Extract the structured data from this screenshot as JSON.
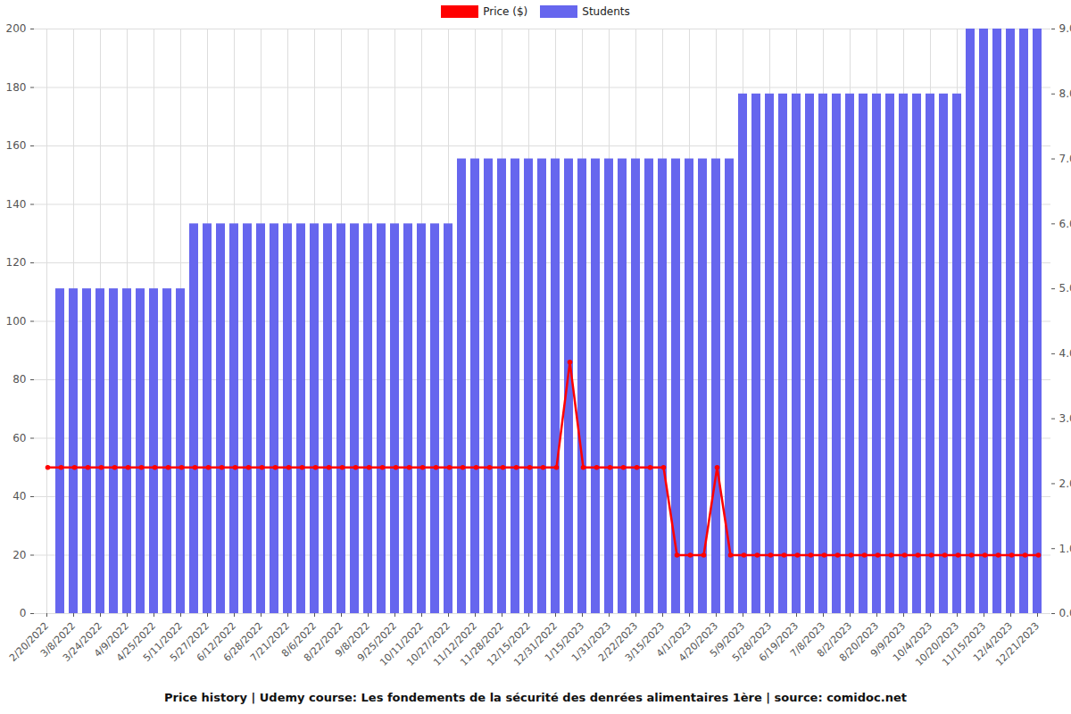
{
  "chart_data": {
    "type": "bar",
    "title": "Price history | Udemy course: Les fondements de la sécurité des denrées alimentaires 1ère | source: comidoc.net",
    "categories": [
      "2/20/2022",
      null,
      "3/8/2022",
      null,
      "3/24/2022",
      null,
      "4/9/2022",
      null,
      "4/25/2022",
      null,
      "5/11/2022",
      null,
      "5/27/2022",
      null,
      "6/12/2022",
      null,
      "6/28/2022",
      null,
      "7/21/2022",
      null,
      "8/6/2022",
      null,
      "8/22/2022",
      null,
      "9/8/2022",
      null,
      "9/25/2022",
      null,
      "10/11/2022",
      null,
      "10/27/2022",
      null,
      "11/12/2022",
      null,
      "11/28/2022",
      null,
      "12/15/2022",
      null,
      "12/31/2022",
      null,
      "1/15/2023",
      null,
      "1/31/2023",
      null,
      "2/22/2023",
      null,
      "3/15/2023",
      null,
      "4/1/2023",
      null,
      "4/20/2023",
      null,
      "5/9/2023",
      null,
      "5/28/2023",
      null,
      "6/19/2023",
      null,
      "7/8/2023",
      null,
      "8/2/2023",
      null,
      "8/20/2023",
      null,
      "9/9/2023",
      null,
      "10/4/2023",
      null,
      "10/20/2023",
      null,
      "11/15/2023",
      null,
      "12/4/2023",
      null,
      "12/21/2023"
    ],
    "series": [
      {
        "name": "Price ($)",
        "type": "line",
        "color": "#ff0000",
        "marker": "o",
        "values": [
          50,
          50,
          50,
          50,
          50,
          50,
          50,
          50,
          50,
          50,
          50,
          50,
          50,
          50,
          50,
          50,
          50,
          50,
          50,
          50,
          50,
          50,
          50,
          50,
          50,
          50,
          50,
          50,
          50,
          50,
          50,
          50,
          50,
          50,
          50,
          50,
          50,
          50,
          50,
          86,
          50,
          50,
          50,
          50,
          50,
          50,
          50,
          20,
          20,
          20,
          50,
          20,
          20,
          20,
          20,
          20,
          20,
          20,
          20,
          20,
          20,
          20,
          20,
          20,
          20,
          20,
          20,
          20,
          20,
          20,
          20,
          20,
          20,
          20,
          20
        ]
      },
      {
        "name": "Students",
        "type": "bar",
        "color": "#6666ee",
        "axis": "y2",
        "values": [
          0,
          5,
          5,
          5,
          5,
          5,
          5,
          5,
          5,
          5,
          5,
          6,
          6,
          6,
          6,
          6,
          6,
          6,
          6,
          6,
          6,
          6,
          6,
          6,
          6,
          6,
          6,
          6,
          6,
          6,
          6,
          7,
          7,
          7,
          7,
          7,
          7,
          7,
          7,
          7,
          7,
          7,
          7,
          7,
          7,
          7,
          7,
          7,
          7,
          7,
          7,
          7,
          8,
          8,
          8,
          8,
          8,
          8,
          8,
          8,
          8,
          8,
          8,
          8,
          8,
          8,
          8,
          8,
          8,
          9,
          9,
          9,
          9,
          9,
          9
        ]
      }
    ],
    "ylim": [
      0,
      200
    ],
    "yticks": [
      0,
      20,
      40,
      60,
      80,
      100,
      120,
      140,
      160,
      180,
      200
    ],
    "y2lim": [
      0,
      9
    ],
    "y2ticks": [
      0,
      1,
      2,
      3,
      4,
      5,
      6,
      7,
      8,
      9
    ],
    "grid": true,
    "legend": "top"
  }
}
